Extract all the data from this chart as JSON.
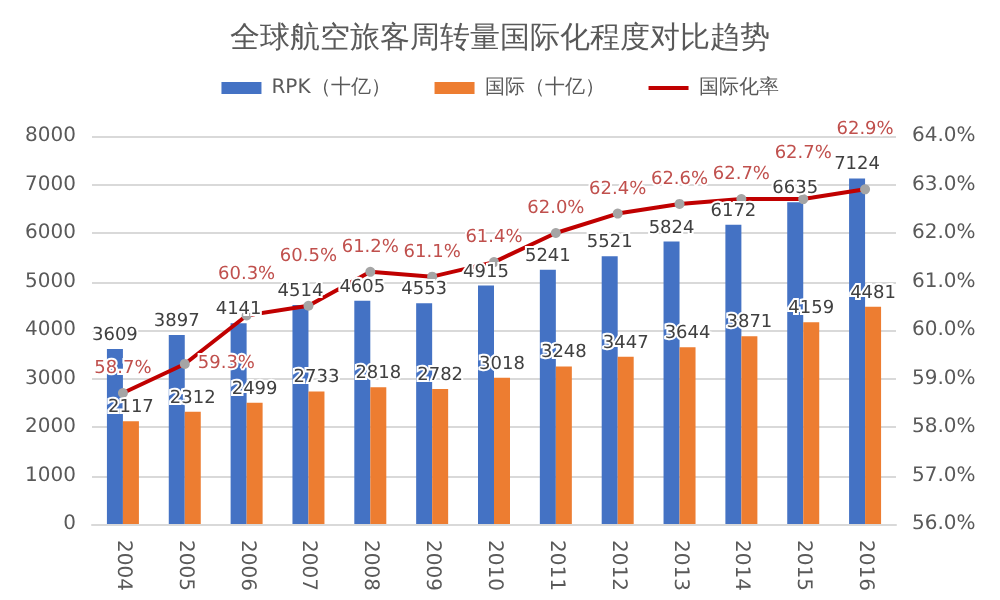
{
  "chart_data": {
    "type": "bar",
    "title": "全球航空旅客周转量国际化程度对比趋势",
    "categories": [
      "2004",
      "2005",
      "2006",
      "2007",
      "2008",
      "2009",
      "2010",
      "2011",
      "2012",
      "2013",
      "2014",
      "2015",
      "2016"
    ],
    "series": [
      {
        "name": "RPK（十亿）",
        "color": "#4472c4",
        "values": [
          3609,
          3897,
          4141,
          4514,
          4605,
          4553,
          4915,
          5241,
          5521,
          5824,
          6172,
          6635,
          7124
        ]
      },
      {
        "name": "国际（十亿）",
        "color": "#ed7d31",
        "values": [
          2117,
          2312,
          2499,
          2733,
          2818,
          2782,
          3018,
          3248,
          3447,
          3644,
          3871,
          4159,
          4481
        ]
      },
      {
        "name": "国际化率",
        "type": "line",
        "axis": "y2",
        "color": "#c00000",
        "marker": "circle",
        "values": [
          58.7,
          59.3,
          60.3,
          60.5,
          61.2,
          61.1,
          61.4,
          62.0,
          62.4,
          62.6,
          62.7,
          62.7,
          62.9
        ],
        "value_labels": [
          "58.7%",
          "59.3%",
          "60.3%",
          "60.5%",
          "61.2%",
          "61.1%",
          "61.4%",
          "62.0%",
          "62.4%",
          "62.6%",
          "62.7%",
          "62.7%",
          "62.9%"
        ]
      }
    ],
    "data_labels": true,
    "ylim": [
      0,
      8000
    ],
    "yticks": [
      0,
      1000,
      2000,
      3000,
      4000,
      5000,
      6000,
      7000,
      8000
    ],
    "y2lim": [
      56,
      64
    ],
    "y2ticks": [
      {
        "value": 56,
        "label": "56.0%"
      },
      {
        "value": 57,
        "label": "57.0%"
      },
      {
        "value": 58,
        "label": "58.0%"
      },
      {
        "value": 59,
        "label": "59.0%"
      },
      {
        "value": 60,
        "label": "60.0%"
      },
      {
        "value": 61,
        "label": "61.0%"
      },
      {
        "value": 62,
        "label": "62.0%"
      },
      {
        "value": 63,
        "label": "63.0%"
      },
      {
        "value": 64,
        "label": "64.0%"
      }
    ],
    "grid": "y",
    "legend": "top"
  }
}
